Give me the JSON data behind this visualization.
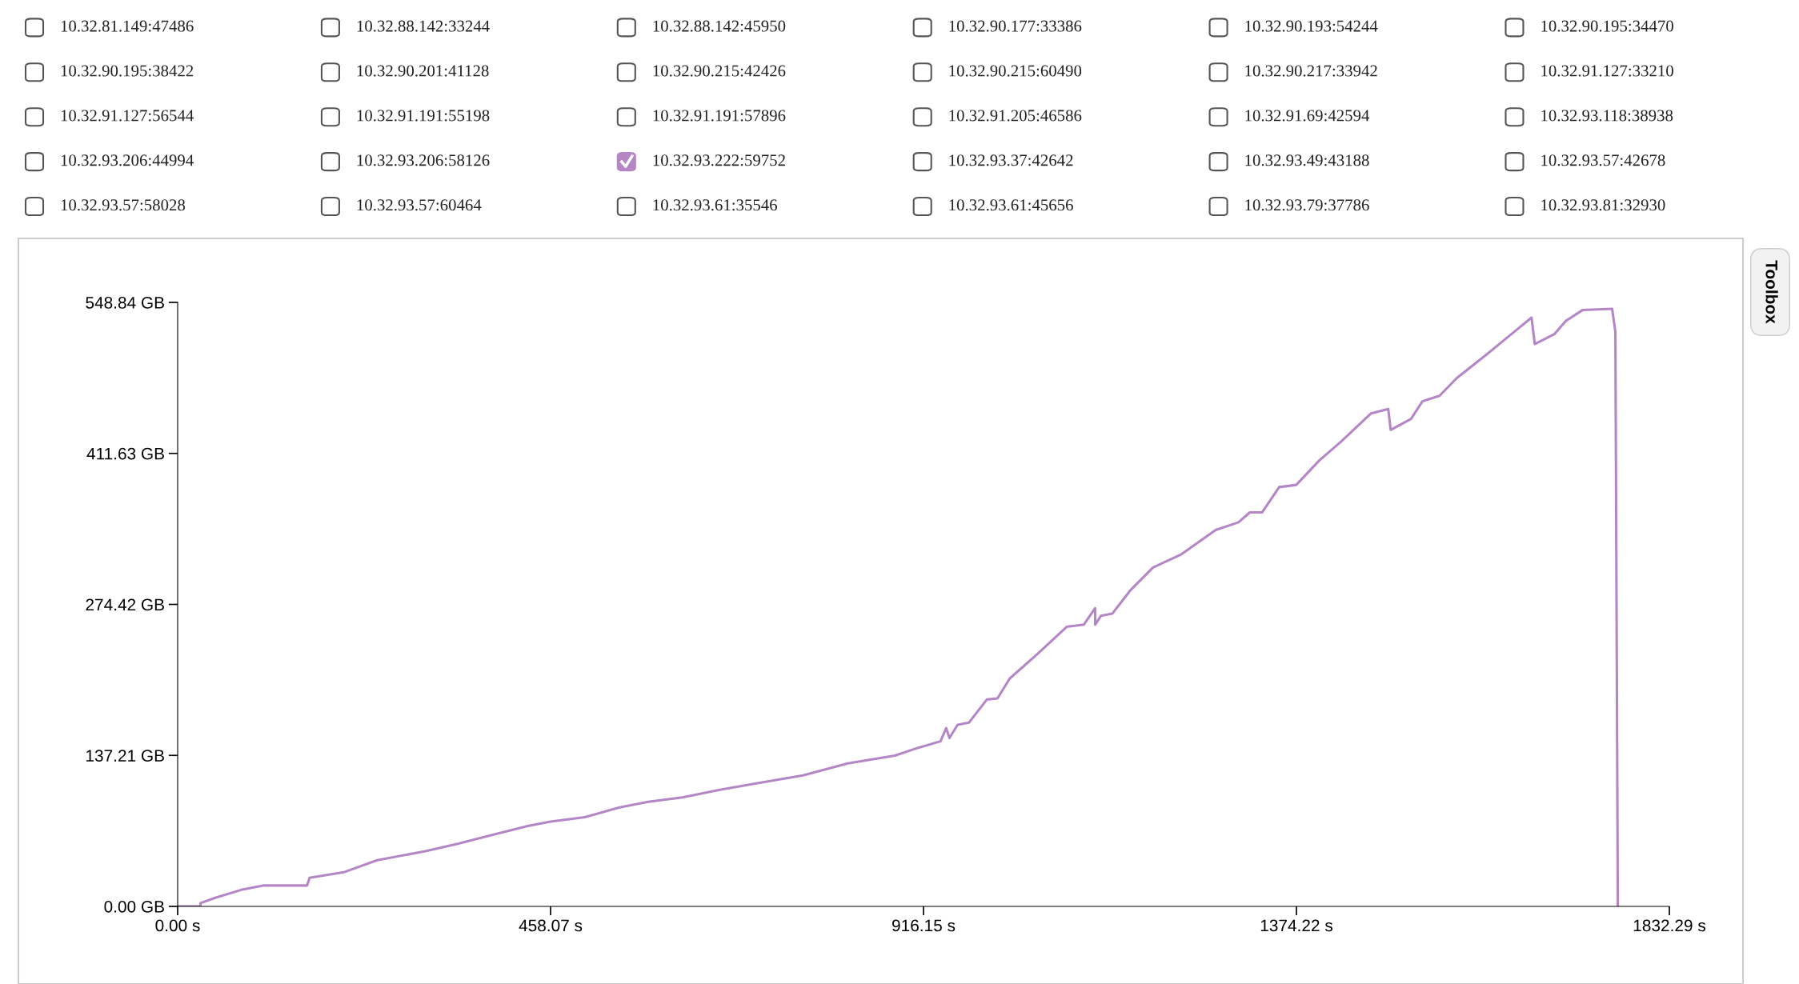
{
  "chart_data": {
    "type": "line",
    "x": [
      0,
      28,
      28,
      47,
      78,
      106,
      159,
      162,
      204,
      245,
      303,
      345,
      387,
      430,
      458,
      500,
      543,
      578,
      620,
      666,
      712,
      768,
      823,
      881,
      909,
      937,
      944,
      948,
      958,
      972,
      994,
      1007,
      1022,
      1057,
      1092,
      1113,
      1127,
      1127,
      1134,
      1148,
      1170,
      1198,
      1233,
      1275,
      1303,
      1317,
      1332,
      1353,
      1374,
      1402,
      1430,
      1466,
      1487,
      1490,
      1515,
      1529,
      1550,
      1571,
      1607,
      1635,
      1663,
      1667,
      1691,
      1705,
      1726,
      1762,
      1766,
      1769
    ],
    "series": [
      {
        "name": "10.32.81.149:47486",
        "values": [
          null,
          null,
          null,
          null,
          null,
          null,
          null,
          null,
          null,
          null,
          null,
          null,
          null,
          null,
          null,
          null,
          null,
          null,
          null,
          null,
          null,
          null,
          null,
          null,
          null,
          null,
          null,
          null,
          null,
          null,
          null,
          null,
          null,
          null,
          null,
          null,
          null,
          null,
          null,
          null,
          null,
          null,
          null,
          null,
          null,
          null,
          null,
          null,
          null,
          null,
          null,
          null,
          null,
          null,
          null,
          null,
          null,
          null,
          null,
          null,
          null,
          null,
          null,
          null,
          null,
          null,
          null,
          null
        ]
      },
      {
        "name": "10.32.88.142:33244",
        "values": [
          null,
          null,
          null,
          null,
          null,
          null,
          null,
          null,
          null,
          null,
          null,
          null,
          null,
          null,
          null,
          null,
          null,
          null,
          null,
          null,
          null,
          null,
          null,
          null,
          null,
          null,
          null,
          null,
          null,
          null,
          null,
          null,
          null,
          null,
          null,
          null,
          null,
          null,
          null,
          null,
          null,
          null,
          null,
          null,
          null,
          null,
          null,
          null,
          null,
          null,
          null,
          null,
          null,
          null,
          null,
          null,
          null,
          null,
          null,
          null,
          null,
          null,
          null,
          null,
          null,
          null,
          null,
          null
        ]
      },
      {
        "name": "10.32.88.142:45950",
        "values": [
          null,
          null,
          null,
          null,
          null,
          null,
          null,
          null,
          null,
          null,
          null,
          null,
          null,
          null,
          null,
          null,
          null,
          null,
          null,
          null,
          null,
          null,
          null,
          null,
          null,
          null,
          null,
          null,
          null,
          null,
          null,
          null,
          null,
          null,
          null,
          null,
          null,
          null,
          null,
          null,
          null,
          null,
          null,
          null,
          null,
          null,
          null,
          null,
          null,
          null,
          null,
          null,
          null,
          null,
          null,
          null,
          null,
          null,
          null,
          null,
          null,
          null,
          null,
          null,
          null,
          null,
          null,
          null
        ]
      },
      {
        "name": "10.32.90.177:33386",
        "values": [
          null,
          null,
          null,
          null,
          null,
          null,
          null,
          null,
          null,
          null,
          null,
          null,
          null,
          null,
          null,
          null,
          null,
          null,
          null,
          null,
          null,
          null,
          null,
          null,
          null,
          null,
          null,
          null,
          null,
          null,
          null,
          null,
          null,
          null,
          null,
          null,
          null,
          null,
          null,
          null,
          null,
          null,
          null,
          null,
          null,
          null,
          null,
          null,
          null,
          null,
          null,
          null,
          null,
          null,
          null,
          null,
          null,
          null,
          null,
          null,
          null,
          null,
          null,
          null,
          null,
          null,
          null,
          null
        ]
      },
      {
        "name": "10.32.90.193:54244",
        "values": [
          null,
          null,
          null,
          null,
          null,
          null,
          null,
          null,
          null,
          null,
          null,
          null,
          null,
          null,
          null,
          null,
          null,
          null,
          null,
          null,
          null,
          null,
          null,
          null,
          null,
          null,
          null,
          null,
          null,
          null,
          null,
          null,
          null,
          null,
          null,
          null,
          null,
          null,
          null,
          null,
          null,
          null,
          null,
          null,
          null,
          null,
          null,
          null,
          null,
          null,
          null,
          null,
          null,
          null,
          null,
          null,
          null,
          null,
          null,
          null,
          null,
          null,
          null,
          null,
          null,
          null,
          null,
          null
        ]
      },
      {
        "name": "10.32.90.195:34470",
        "values": [
          null,
          null,
          null,
          null,
          null,
          null,
          null,
          null,
          null,
          null,
          null,
          null,
          null,
          null,
          null,
          null,
          null,
          null,
          null,
          null,
          null,
          null,
          null,
          null,
          null,
          null,
          null,
          null,
          null,
          null,
          null,
          null,
          null,
          null,
          null,
          null,
          null,
          null,
          null,
          null,
          null,
          null,
          null,
          null,
          null,
          null,
          null,
          null,
          null,
          null,
          null,
          null,
          null,
          null,
          null,
          null,
          null,
          null,
          null,
          null,
          null,
          null,
          null,
          null,
          null,
          null,
          null,
          null
        ]
      },
      {
        "name": "10.32.90.195:38422",
        "values": [
          null,
          null,
          null,
          null,
          null,
          null,
          null,
          null,
          null,
          null,
          null,
          null,
          null,
          null,
          null,
          null,
          null,
          null,
          null,
          null,
          null,
          null,
          null,
          null,
          null,
          null,
          null,
          null,
          null,
          null,
          null,
          null,
          null,
          null,
          null,
          null,
          null,
          null,
          null,
          null,
          null,
          null,
          null,
          null,
          null,
          null,
          null,
          null,
          null,
          null,
          null,
          null,
          null,
          null,
          null,
          null,
          null,
          null,
          null,
          null,
          null,
          null,
          null,
          null,
          null,
          null,
          null,
          null
        ]
      },
      {
        "name": "10.32.90.201:41128",
        "values": [
          null,
          null,
          null,
          null,
          null,
          null,
          null,
          null,
          null,
          null,
          null,
          null,
          null,
          null,
          null,
          null,
          null,
          null,
          null,
          null,
          null,
          null,
          null,
          null,
          null,
          null,
          null,
          null,
          null,
          null,
          null,
          null,
          null,
          null,
          null,
          null,
          null,
          null,
          null,
          null,
          null,
          null,
          null,
          null,
          null,
          null,
          null,
          null,
          null,
          null,
          null,
          null,
          null,
          null,
          null,
          null,
          null,
          null,
          null,
          null,
          null,
          null,
          null,
          null,
          null,
          null,
          null,
          null
        ]
      },
      {
        "name": "10.32.90.215:42426",
        "values": [
          null,
          null,
          null,
          null,
          null,
          null,
          null,
          null,
          null,
          null,
          null,
          null,
          null,
          null,
          null,
          null,
          null,
          null,
          null,
          null,
          null,
          null,
          null,
          null,
          null,
          null,
          null,
          null,
          null,
          null,
          null,
          null,
          null,
          null,
          null,
          null,
          null,
          null,
          null,
          null,
          null,
          null,
          null,
          null,
          null,
          null,
          null,
          null,
          null,
          null,
          null,
          null,
          null,
          null,
          null,
          null,
          null,
          null,
          null,
          null,
          null,
          null,
          null,
          null,
          null,
          null,
          null,
          null
        ]
      },
      {
        "name": "10.32.90.215:60490",
        "values": [
          null,
          null,
          null,
          null,
          null,
          null,
          null,
          null,
          null,
          null,
          null,
          null,
          null,
          null,
          null,
          null,
          null,
          null,
          null,
          null,
          null,
          null,
          null,
          null,
          null,
          null,
          null,
          null,
          null,
          null,
          null,
          null,
          null,
          null,
          null,
          null,
          null,
          null,
          null,
          null,
          null,
          null,
          null,
          null,
          null,
          null,
          null,
          null,
          null,
          null,
          null,
          null,
          null,
          null,
          null,
          null,
          null,
          null,
          null,
          null,
          null,
          null,
          null,
          null,
          null,
          null,
          null,
          null
        ]
      },
      {
        "name": "10.32.90.217:33942",
        "values": [
          null,
          null,
          null,
          null,
          null,
          null,
          null,
          null,
          null,
          null,
          null,
          null,
          null,
          null,
          null,
          null,
          null,
          null,
          null,
          null,
          null,
          null,
          null,
          null,
          null,
          null,
          null,
          null,
          null,
          null,
          null,
          null,
          null,
          null,
          null,
          null,
          null,
          null,
          null,
          null,
          null,
          null,
          null,
          null,
          null,
          null,
          null,
          null,
          null,
          null,
          null,
          null,
          null,
          null,
          null,
          null,
          null,
          null,
          null,
          null,
          null,
          null,
          null,
          null,
          null,
          null,
          null,
          null
        ]
      },
      {
        "name": "10.32.91.127:33210",
        "values": [
          null,
          null,
          null,
          null,
          null,
          null,
          null,
          null,
          null,
          null,
          null,
          null,
          null,
          null,
          null,
          null,
          null,
          null,
          null,
          null,
          null,
          null,
          null,
          null,
          null,
          null,
          null,
          null,
          null,
          null,
          null,
          null,
          null,
          null,
          null,
          null,
          null,
          null,
          null,
          null,
          null,
          null,
          null,
          null,
          null,
          null,
          null,
          null,
          null,
          null,
          null,
          null,
          null,
          null,
          null,
          null,
          null,
          null,
          null,
          null,
          null,
          null,
          null,
          null,
          null,
          null,
          null,
          null
        ]
      },
      {
        "name": "10.32.91.127:56544",
        "values": [
          null,
          null,
          null,
          null,
          null,
          null,
          null,
          null,
          null,
          null,
          null,
          null,
          null,
          null,
          null,
          null,
          null,
          null,
          null,
          null,
          null,
          null,
          null,
          null,
          null,
          null,
          null,
          null,
          null,
          null,
          null,
          null,
          null,
          null,
          null,
          null,
          null,
          null,
          null,
          null,
          null,
          null,
          null,
          null,
          null,
          null,
          null,
          null,
          null,
          null,
          null,
          null,
          null,
          null,
          null,
          null,
          null,
          null,
          null,
          null,
          null,
          null,
          null,
          null,
          null,
          null,
          null,
          null
        ]
      },
      {
        "name": "10.32.91.191:55198",
        "values": [
          null,
          null,
          null,
          null,
          null,
          null,
          null,
          null,
          null,
          null,
          null,
          null,
          null,
          null,
          null,
          null,
          null,
          null,
          null,
          null,
          null,
          null,
          null,
          null,
          null,
          null,
          null,
          null,
          null,
          null,
          null,
          null,
          null,
          null,
          null,
          null,
          null,
          null,
          null,
          null,
          null,
          null,
          null,
          null,
          null,
          null,
          null,
          null,
          null,
          null,
          null,
          null,
          null,
          null,
          null,
          null,
          null,
          null,
          null,
          null,
          null,
          null,
          null,
          null,
          null,
          null,
          null,
          null
        ]
      },
      {
        "name": "10.32.91.191:57896",
        "values": [
          null,
          null,
          null,
          null,
          null,
          null,
          null,
          null,
          null,
          null,
          null,
          null,
          null,
          null,
          null,
          null,
          null,
          null,
          null,
          null,
          null,
          null,
          null,
          null,
          null,
          null,
          null,
          null,
          null,
          null,
          null,
          null,
          null,
          null,
          null,
          null,
          null,
          null,
          null,
          null,
          null,
          null,
          null,
          null,
          null,
          null,
          null,
          null,
          null,
          null,
          null,
          null,
          null,
          null,
          null,
          null,
          null,
          null,
          null,
          null,
          null,
          null,
          null,
          null,
          null,
          null,
          null,
          null
        ]
      },
      {
        "name": "10.32.91.205:46586",
        "values": [
          null,
          null,
          null,
          null,
          null,
          null,
          null,
          null,
          null,
          null,
          null,
          null,
          null,
          null,
          null,
          null,
          null,
          null,
          null,
          null,
          null,
          null,
          null,
          null,
          null,
          null,
          null,
          null,
          null,
          null,
          null,
          null,
          null,
          null,
          null,
          null,
          null,
          null,
          null,
          null,
          null,
          null,
          null,
          null,
          null,
          null,
          null,
          null,
          null,
          null,
          null,
          null,
          null,
          null,
          null,
          null,
          null,
          null,
          null,
          null,
          null,
          null,
          null,
          null,
          null,
          null,
          null,
          null
        ]
      },
      {
        "name": "10.32.91.69:42594",
        "values": [
          null,
          null,
          null,
          null,
          null,
          null,
          null,
          null,
          null,
          null,
          null,
          null,
          null,
          null,
          null,
          null,
          null,
          null,
          null,
          null,
          null,
          null,
          null,
          null,
          null,
          null,
          null,
          null,
          null,
          null,
          null,
          null,
          null,
          null,
          null,
          null,
          null,
          null,
          null,
          null,
          null,
          null,
          null,
          null,
          null,
          null,
          null,
          null,
          null,
          null,
          null,
          null,
          null,
          null,
          null,
          null,
          null,
          null,
          null,
          null,
          null,
          null,
          null,
          null,
          null,
          null,
          null,
          null
        ]
      },
      {
        "name": "10.32.93.118:38938",
        "values": [
          null,
          null,
          null,
          null,
          null,
          null,
          null,
          null,
          null,
          null,
          null,
          null,
          null,
          null,
          null,
          null,
          null,
          null,
          null,
          null,
          null,
          null,
          null,
          null,
          null,
          null,
          null,
          null,
          null,
          null,
          null,
          null,
          null,
          null,
          null,
          null,
          null,
          null,
          null,
          null,
          null,
          null,
          null,
          null,
          null,
          null,
          null,
          null,
          null,
          null,
          null,
          null,
          null,
          null,
          null,
          null,
          null,
          null,
          null,
          null,
          null,
          null,
          null,
          null,
          null,
          null,
          null,
          null
        ]
      },
      {
        "name": "10.32.93.206:44994",
        "values": [
          null,
          null,
          null,
          null,
          null,
          null,
          null,
          null,
          null,
          null,
          null,
          null,
          null,
          null,
          null,
          null,
          null,
          null,
          null,
          null,
          null,
          null,
          null,
          null,
          null,
          null,
          null,
          null,
          null,
          null,
          null,
          null,
          null,
          null,
          null,
          null,
          null,
          null,
          null,
          null,
          null,
          null,
          null,
          null,
          null,
          null,
          null,
          null,
          null,
          null,
          null,
          null,
          null,
          null,
          null,
          null,
          null,
          null,
          null,
          null,
          null,
          null,
          null,
          null,
          null,
          null,
          null,
          null
        ]
      },
      {
        "name": "10.32.93.206:58126",
        "values": [
          null,
          null,
          null,
          null,
          null,
          null,
          null,
          null,
          null,
          null,
          null,
          null,
          null,
          null,
          null,
          null,
          null,
          null,
          null,
          null,
          null,
          null,
          null,
          null,
          null,
          null,
          null,
          null,
          null,
          null,
          null,
          null,
          null,
          null,
          null,
          null,
          null,
          null,
          null,
          null,
          null,
          null,
          null,
          null,
          null,
          null,
          null,
          null,
          null,
          null,
          null,
          null,
          null,
          null,
          null,
          null,
          null,
          null,
          null,
          null,
          null,
          null,
          null,
          null,
          null,
          null,
          null,
          null
        ]
      },
      {
        "name": "10.32.93.222:59752",
        "color": "#b586c6",
        "values": [
          0,
          0,
          3,
          8,
          15,
          19,
          19,
          26,
          31,
          42,
          50,
          57,
          65,
          73,
          77,
          81,
          90,
          95,
          99,
          106,
          112,
          119,
          130,
          137,
          144,
          150,
          162,
          153,
          165,
          167,
          188,
          189,
          207,
          230,
          254,
          256,
          271,
          256,
          264,
          266,
          287,
          308,
          320,
          342,
          349,
          358,
          358,
          381,
          383,
          405,
          423,
          448,
          452,
          433,
          443,
          459,
          464,
          480,
          501,
          518,
          535,
          511,
          520,
          532,
          542,
          543,
          522,
          0
        ]
      },
      {
        "name": "10.32.93.37:42642",
        "values": [
          null,
          null,
          null,
          null,
          null,
          null,
          null,
          null,
          null,
          null,
          null,
          null,
          null,
          null,
          null,
          null,
          null,
          null,
          null,
          null,
          null,
          null,
          null,
          null,
          null,
          null,
          null,
          null,
          null,
          null,
          null,
          null,
          null,
          null,
          null,
          null,
          null,
          null,
          null,
          null,
          null,
          null,
          null,
          null,
          null,
          null,
          null,
          null,
          null,
          null,
          null,
          null,
          null,
          null,
          null,
          null,
          null,
          null,
          null,
          null,
          null,
          null,
          null,
          null,
          null,
          null,
          null,
          null
        ]
      },
      {
        "name": "10.32.93.49:43188",
        "values": [
          null,
          null,
          null,
          null,
          null,
          null,
          null,
          null,
          null,
          null,
          null,
          null,
          null,
          null,
          null,
          null,
          null,
          null,
          null,
          null,
          null,
          null,
          null,
          null,
          null,
          null,
          null,
          null,
          null,
          null,
          null,
          null,
          null,
          null,
          null,
          null,
          null,
          null,
          null,
          null,
          null,
          null,
          null,
          null,
          null,
          null,
          null,
          null,
          null,
          null,
          null,
          null,
          null,
          null,
          null,
          null,
          null,
          null,
          null,
          null,
          null,
          null,
          null,
          null,
          null,
          null,
          null,
          null
        ]
      },
      {
        "name": "10.32.93.57:42678",
        "values": [
          null,
          null,
          null,
          null,
          null,
          null,
          null,
          null,
          null,
          null,
          null,
          null,
          null,
          null,
          null,
          null,
          null,
          null,
          null,
          null,
          null,
          null,
          null,
          null,
          null,
          null,
          null,
          null,
          null,
          null,
          null,
          null,
          null,
          null,
          null,
          null,
          null,
          null,
          null,
          null,
          null,
          null,
          null,
          null,
          null,
          null,
          null,
          null,
          null,
          null,
          null,
          null,
          null,
          null,
          null,
          null,
          null,
          null,
          null,
          null,
          null,
          null,
          null,
          null,
          null,
          null,
          null,
          null
        ]
      },
      {
        "name": "10.32.93.57:58028",
        "values": [
          null,
          null,
          null,
          null,
          null,
          null,
          null,
          null,
          null,
          null,
          null,
          null,
          null,
          null,
          null,
          null,
          null,
          null,
          null,
          null,
          null,
          null,
          null,
          null,
          null,
          null,
          null,
          null,
          null,
          null,
          null,
          null,
          null,
          null,
          null,
          null,
          null,
          null,
          null,
          null,
          null,
          null,
          null,
          null,
          null,
          null,
          null,
          null,
          null,
          null,
          null,
          null,
          null,
          null,
          null,
          null,
          null,
          null,
          null,
          null,
          null,
          null,
          null,
          null,
          null,
          null,
          null,
          null
        ]
      },
      {
        "name": "10.32.93.57:60464",
        "values": [
          null,
          null,
          null,
          null,
          null,
          null,
          null,
          null,
          null,
          null,
          null,
          null,
          null,
          null,
          null,
          null,
          null,
          null,
          null,
          null,
          null,
          null,
          null,
          null,
          null,
          null,
          null,
          null,
          null,
          null,
          null,
          null,
          null,
          null,
          null,
          null,
          null,
          null,
          null,
          null,
          null,
          null,
          null,
          null,
          null,
          null,
          null,
          null,
          null,
          null,
          null,
          null,
          null,
          null,
          null,
          null,
          null,
          null,
          null,
          null,
          null,
          null,
          null,
          null,
          null,
          null,
          null,
          null
        ]
      },
      {
        "name": "10.32.93.61:35546",
        "values": [
          null,
          null,
          null,
          null,
          null,
          null,
          null,
          null,
          null,
          null,
          null,
          null,
          null,
          null,
          null,
          null,
          null,
          null,
          null,
          null,
          null,
          null,
          null,
          null,
          null,
          null,
          null,
          null,
          null,
          null,
          null,
          null,
          null,
          null,
          null,
          null,
          null,
          null,
          null,
          null,
          null,
          null,
          null,
          null,
          null,
          null,
          null,
          null,
          null,
          null,
          null,
          null,
          null,
          null,
          null,
          null,
          null,
          null,
          null,
          null,
          null,
          null,
          null,
          null,
          null,
          null,
          null,
          null
        ]
      },
      {
        "name": "10.32.93.61:45656",
        "values": [
          null,
          null,
          null,
          null,
          null,
          null,
          null,
          null,
          null,
          null,
          null,
          null,
          null,
          null,
          null,
          null,
          null,
          null,
          null,
          null,
          null,
          null,
          null,
          null,
          null,
          null,
          null,
          null,
          null,
          null,
          null,
          null,
          null,
          null,
          null,
          null,
          null,
          null,
          null,
          null,
          null,
          null,
          null,
          null,
          null,
          null,
          null,
          null,
          null,
          null,
          null,
          null,
          null,
          null,
          null,
          null,
          null,
          null,
          null,
          null,
          null,
          null,
          null,
          null,
          null,
          null,
          null,
          null
        ]
      },
      {
        "name": "10.32.93.79:37786",
        "values": [
          null,
          null,
          null,
          null,
          null,
          null,
          null,
          null,
          null,
          null,
          null,
          null,
          null,
          null,
          null,
          null,
          null,
          null,
          null,
          null,
          null,
          null,
          null,
          null,
          null,
          null,
          null,
          null,
          null,
          null,
          null,
          null,
          null,
          null,
          null,
          null,
          null,
          null,
          null,
          null,
          null,
          null,
          null,
          null,
          null,
          null,
          null,
          null,
          null,
          null,
          null,
          null,
          null,
          null,
          null,
          null,
          null,
          null,
          null,
          null,
          null,
          null,
          null,
          null,
          null,
          null,
          null,
          null
        ]
      },
      {
        "name": "10.32.93.81:32930",
        "values": [
          null,
          null,
          null,
          null,
          null,
          null,
          null,
          null,
          null,
          null,
          null,
          null,
          null,
          null,
          null,
          null,
          null,
          null,
          null,
          null,
          null,
          null,
          null,
          null,
          null,
          null,
          null,
          null,
          null,
          null,
          null,
          null,
          null,
          null,
          null,
          null,
          null,
          null,
          null,
          null,
          null,
          null,
          null,
          null,
          null,
          null,
          null,
          null,
          null,
          null,
          null,
          null,
          null,
          null,
          null,
          null,
          null,
          null,
          null,
          null,
          null,
          null,
          null,
          null,
          null,
          null,
          null,
          null
        ]
      }
    ],
    "xlim": [
      0,
      1832.29
    ],
    "xticks": [
      {
        "value": 0,
        "label": "0.00 s"
      },
      {
        "value": 458.07,
        "label": "458.07 s"
      },
      {
        "value": 916.15,
        "label": "916.15 s"
      },
      {
        "value": 1374.22,
        "label": "1374.22 s"
      },
      {
        "value": 1832.29,
        "label": "1832.29 s"
      }
    ],
    "ylim": [
      0,
      548.84
    ],
    "yticks": [
      {
        "value": 0,
        "label": "0.00 GB"
      },
      {
        "value": 137.21,
        "label": "137.21 GB"
      },
      {
        "value": 274.42,
        "label": "274.42 GB"
      },
      {
        "value": 411.63,
        "label": "411.63 GB"
      },
      {
        "value": 548.84,
        "label": "548.84 GB"
      }
    ],
    "grid": false,
    "legend": "top",
    "line_style": "solid",
    "annotations": [
      "Toolbox"
    ]
  }
}
